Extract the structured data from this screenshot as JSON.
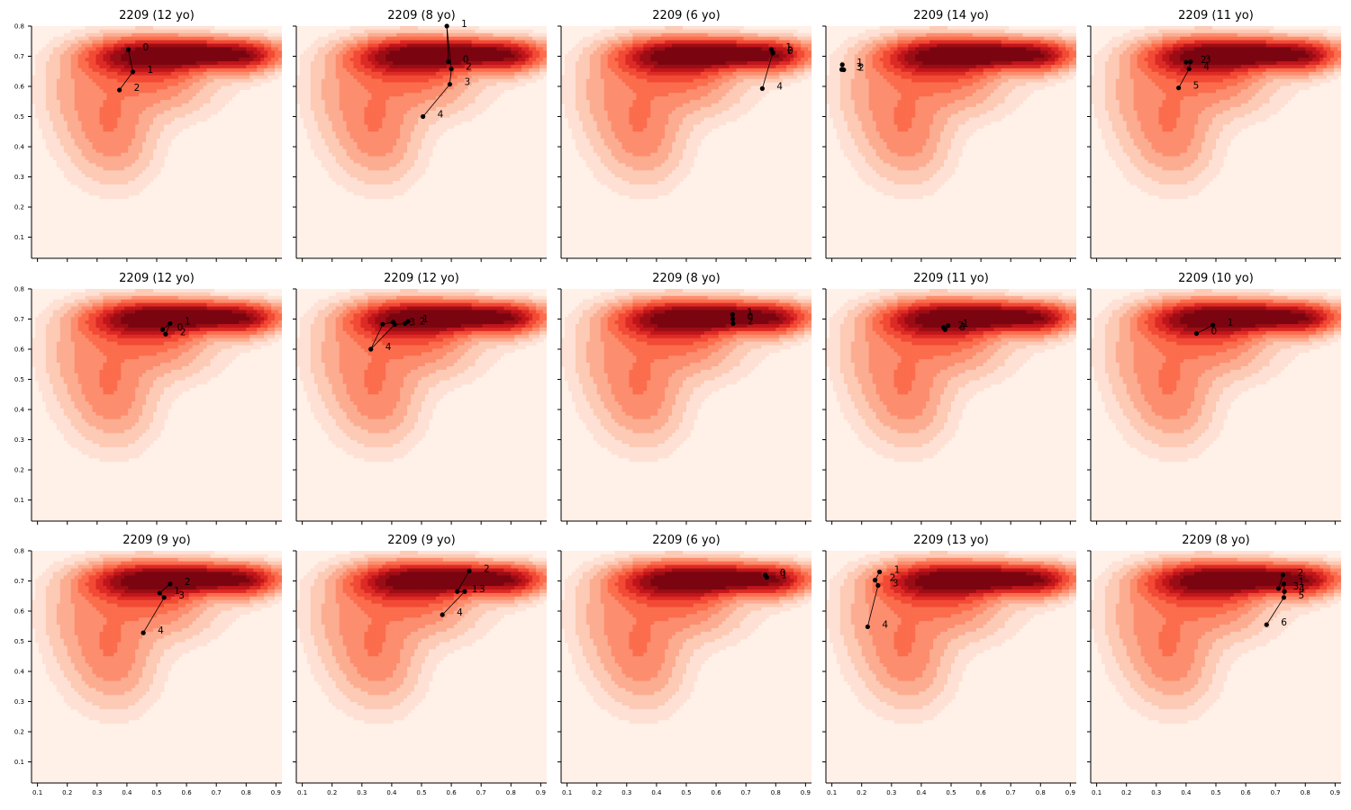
{
  "chart_data": {
    "type": "contour-trajectory-grid",
    "xlim": [
      0.08,
      0.92
    ],
    "ylim": [
      0.03,
      0.8
    ],
    "x_ticks": [
      "0.1",
      "0.2",
      "0.3",
      "0.4",
      "0.5",
      "0.6",
      "0.7",
      "0.8",
      "0.9"
    ],
    "y_ticks": [
      "0.1",
      "0.2",
      "0.3",
      "0.4",
      "0.5",
      "0.6",
      "0.7",
      "0.8"
    ],
    "grid": false,
    "colormap": [
      "#fff0e8",
      "#fee1d4",
      "#fdcab5",
      "#fcad91",
      "#fc8e6f",
      "#fb6d4d",
      "#f24a35",
      "#dc2a25",
      "#bf151b",
      "#9b0d14",
      "#7a0510"
    ],
    "panels": [
      {
        "title": "2209 (12 yo)",
        "points": [
          {
            "x": 0.405,
            "y": 0.722,
            "label": "0"
          },
          {
            "x": 0.42,
            "y": 0.648,
            "label": "1"
          },
          {
            "x": 0.375,
            "y": 0.588,
            "label": "2"
          }
        ]
      },
      {
        "title": "2209 (8 yo)",
        "points": [
          {
            "x": 0.59,
            "y": 0.682,
            "label": "0"
          },
          {
            "x": 0.585,
            "y": 0.8,
            "label": "1"
          },
          {
            "x": 0.6,
            "y": 0.658,
            "label": "2"
          },
          {
            "x": 0.595,
            "y": 0.607,
            "label": "3"
          },
          {
            "x": 0.505,
            "y": 0.5,
            "label": "4"
          }
        ]
      },
      {
        "title": "2209 (6 yo)",
        "points": [
          {
            "x": 0.79,
            "y": 0.71,
            "label": "0"
          },
          {
            "x": 0.785,
            "y": 0.723,
            "label": "1"
          },
          {
            "x": 0.79,
            "y": 0.712,
            "label": "2"
          },
          {
            "x": 0.755,
            "y": 0.593,
            "label": "4"
          }
        ]
      },
      {
        "title": "2209 (14 yo)",
        "points": [
          {
            "x": 0.135,
            "y": 0.672,
            "label": "1"
          },
          {
            "x": 0.14,
            "y": 0.655,
            "label": "2"
          },
          {
            "x": 0.133,
            "y": 0.656,
            "label": "3"
          }
        ]
      },
      {
        "title": "2209 (11 yo)",
        "points": [
          {
            "x": 0.4,
            "y": 0.68,
            "label": "2"
          },
          {
            "x": 0.415,
            "y": 0.682,
            "label": "3"
          },
          {
            "x": 0.41,
            "y": 0.658,
            "label": "4"
          },
          {
            "x": 0.375,
            "y": 0.595,
            "label": "5"
          }
        ]
      },
      {
        "title": "2209 (12 yo)",
        "points": [
          {
            "x": 0.52,
            "y": 0.665,
            "label": "0"
          },
          {
            "x": 0.545,
            "y": 0.685,
            "label": "1"
          },
          {
            "x": 0.53,
            "y": 0.65,
            "label": "2"
          }
        ]
      },
      {
        "title": "2209 (12 yo)",
        "points": [
          {
            "x": 0.455,
            "y": 0.692,
            "label": "1"
          },
          {
            "x": 0.445,
            "y": 0.685,
            "label": "2"
          },
          {
            "x": 0.41,
            "y": 0.682,
            "label": "3"
          },
          {
            "x": 0.33,
            "y": 0.6,
            "label": "4"
          },
          {
            "x": 0.37,
            "y": 0.683,
            "label": ""
          },
          {
            "x": 0.405,
            "y": 0.69,
            "label": ""
          }
        ]
      },
      {
        "title": "2209 (8 yo)",
        "points": [
          {
            "x": 0.655,
            "y": 0.715,
            "label": "1"
          },
          {
            "x": 0.657,
            "y": 0.685,
            "label": "2"
          },
          {
            "x": 0.656,
            "y": 0.7,
            "label": "0"
          }
        ]
      },
      {
        "title": "2209 (11 yo)",
        "points": [
          {
            "x": 0.475,
            "y": 0.672,
            "label": "2"
          },
          {
            "x": 0.49,
            "y": 0.678,
            "label": "1"
          },
          {
            "x": 0.48,
            "y": 0.665,
            "label": "3"
          }
        ]
      },
      {
        "title": "2209 (10 yo)",
        "points": [
          {
            "x": 0.49,
            "y": 0.68,
            "label": "1"
          },
          {
            "x": 0.435,
            "y": 0.652,
            "label": "0"
          }
        ]
      },
      {
        "title": "2209 (9 yo)",
        "points": [
          {
            "x": 0.545,
            "y": 0.69,
            "label": "2"
          },
          {
            "x": 0.51,
            "y": 0.66,
            "label": "1"
          },
          {
            "x": 0.525,
            "y": 0.645,
            "label": "3"
          },
          {
            "x": 0.455,
            "y": 0.528,
            "label": "4"
          }
        ]
      },
      {
        "title": "2209 (9 yo)",
        "points": [
          {
            "x": 0.66,
            "y": 0.733,
            "label": "2"
          },
          {
            "x": 0.62,
            "y": 0.665,
            "label": "1"
          },
          {
            "x": 0.645,
            "y": 0.665,
            "label": "3"
          },
          {
            "x": 0.57,
            "y": 0.588,
            "label": "4"
          }
        ]
      },
      {
        "title": "2209 (6 yo)",
        "points": [
          {
            "x": 0.765,
            "y": 0.72,
            "label": "0"
          },
          {
            "x": 0.77,
            "y": 0.712,
            "label": "1"
          }
        ]
      },
      {
        "title": "2209 (13 yo)",
        "points": [
          {
            "x": 0.26,
            "y": 0.73,
            "label": "1"
          },
          {
            "x": 0.245,
            "y": 0.703,
            "label": "2"
          },
          {
            "x": 0.255,
            "y": 0.685,
            "label": "3"
          },
          {
            "x": 0.22,
            "y": 0.548,
            "label": "4"
          }
        ]
      },
      {
        "title": "2209 (8 yo)",
        "points": [
          {
            "x": 0.725,
            "y": 0.72,
            "label": "2"
          },
          {
            "x": 0.71,
            "y": 0.675,
            "label": "3"
          },
          {
            "x": 0.728,
            "y": 0.69,
            "label": "1"
          },
          {
            "x": 0.73,
            "y": 0.665,
            "label": "4"
          },
          {
            "x": 0.728,
            "y": 0.645,
            "label": "5"
          },
          {
            "x": 0.67,
            "y": 0.555,
            "label": "6"
          }
        ]
      }
    ]
  }
}
